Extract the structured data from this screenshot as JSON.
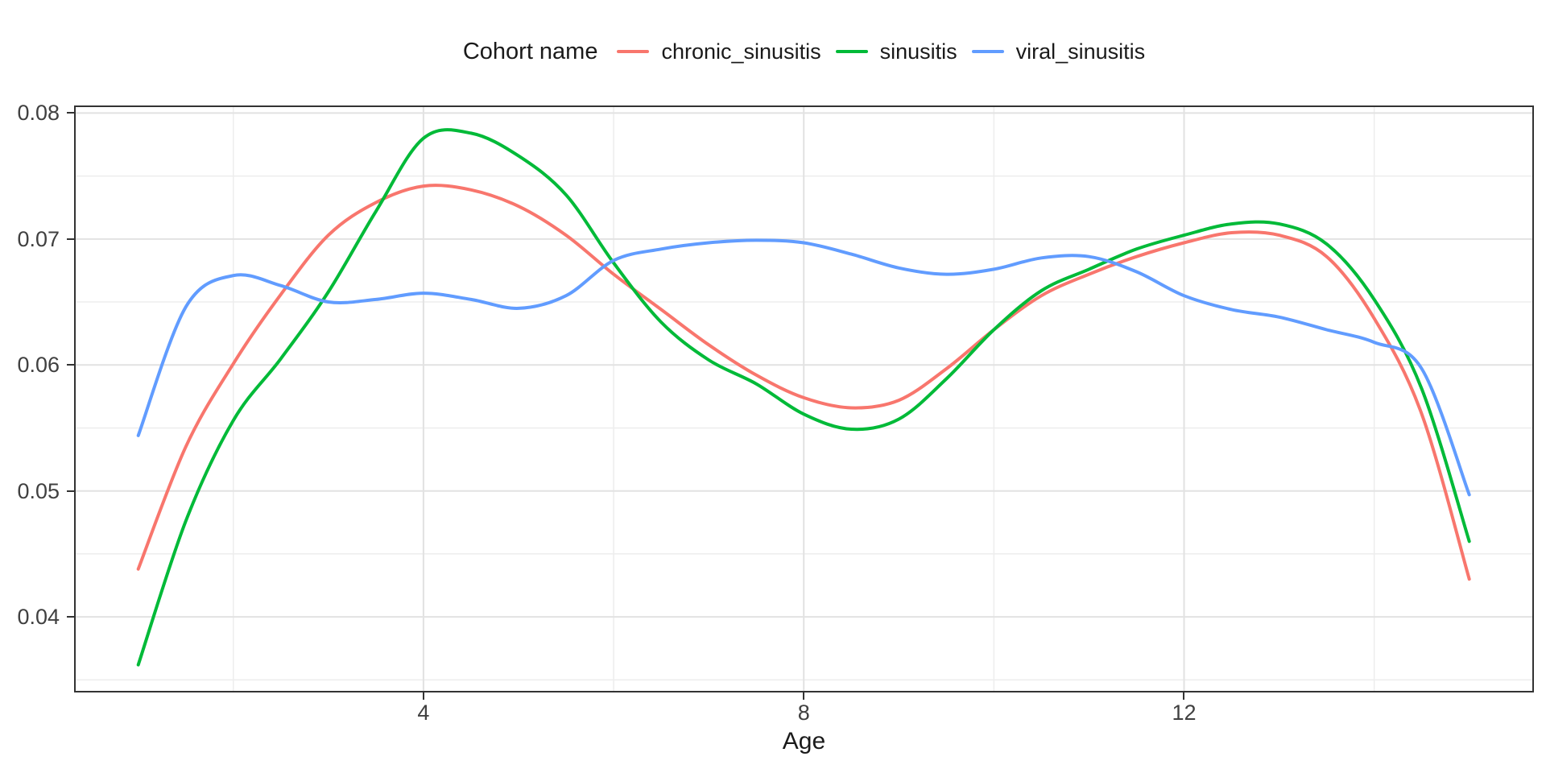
{
  "chart_data": {
    "type": "line",
    "title": "",
    "xlabel": "Age",
    "ylabel": "",
    "legend_title": "Cohort name",
    "legend_position": "top",
    "grid": true,
    "x_domain": [
      0.325,
      15.68
    ],
    "y_domain": [
      0.034,
      0.0806
    ],
    "x_ticks": [
      {
        "value": 4,
        "label": "4"
      },
      {
        "value": 8,
        "label": "8"
      },
      {
        "value": 12,
        "label": "12"
      }
    ],
    "y_ticks": [
      {
        "value": 0.04,
        "label": "0.04"
      },
      {
        "value": 0.05,
        "label": "0.05"
      },
      {
        "value": 0.06,
        "label": "0.06"
      },
      {
        "value": 0.07,
        "label": "0.07"
      },
      {
        "value": 0.08,
        "label": "0.08"
      }
    ],
    "x_minor": [
      2,
      6,
      10,
      14
    ],
    "y_minor": [
      0.035,
      0.045,
      0.055,
      0.065,
      0.075
    ],
    "colors": {
      "grid_major": "#E2E2E2",
      "grid_minor": "#EDEDED",
      "panel_border": "#333333",
      "tick": "#333333",
      "tick_label": "#404040",
      "title_text": "#1A1A1A"
    },
    "series": [
      {
        "name": "chronic_sinusitis",
        "color": "#F8766D",
        "points": [
          [
            1.0,
            0.0438
          ],
          [
            1.5,
            0.0535
          ],
          [
            2.0,
            0.0601
          ],
          [
            2.5,
            0.0656
          ],
          [
            3.0,
            0.0703
          ],
          [
            3.5,
            0.0729
          ],
          [
            4.0,
            0.0742
          ],
          [
            4.5,
            0.0739
          ],
          [
            5.0,
            0.0726
          ],
          [
            5.5,
            0.0703
          ],
          [
            6.0,
            0.0672
          ],
          [
            6.5,
            0.0644
          ],
          [
            7.0,
            0.0616
          ],
          [
            7.5,
            0.0592
          ],
          [
            8.0,
            0.0574
          ],
          [
            8.5,
            0.0566
          ],
          [
            9.0,
            0.0572
          ],
          [
            9.5,
            0.0597
          ],
          [
            10.0,
            0.0628
          ],
          [
            10.5,
            0.0655
          ],
          [
            11.0,
            0.0672
          ],
          [
            11.5,
            0.0686
          ],
          [
            12.0,
            0.0697
          ],
          [
            12.5,
            0.0705
          ],
          [
            13.0,
            0.0703
          ],
          [
            13.5,
            0.0686
          ],
          [
            14.0,
            0.0637
          ],
          [
            14.5,
            0.0561
          ],
          [
            15.0,
            0.043
          ]
        ]
      },
      {
        "name": "sinusitis",
        "color": "#00BA38",
        "points": [
          [
            1.0,
            0.0362
          ],
          [
            1.5,
            0.0476
          ],
          [
            2.0,
            0.0556
          ],
          [
            2.5,
            0.0605
          ],
          [
            3.0,
            0.0658
          ],
          [
            3.5,
            0.0722
          ],
          [
            4.0,
            0.078
          ],
          [
            4.5,
            0.0784
          ],
          [
            5.0,
            0.0766
          ],
          [
            5.5,
            0.0735
          ],
          [
            6.0,
            0.0681
          ],
          [
            6.5,
            0.0634
          ],
          [
            7.0,
            0.0604
          ],
          [
            7.5,
            0.0585
          ],
          [
            8.0,
            0.0561
          ],
          [
            8.5,
            0.0549
          ],
          [
            9.0,
            0.0557
          ],
          [
            9.5,
            0.0589
          ],
          [
            10.0,
            0.0628
          ],
          [
            10.5,
            0.0659
          ],
          [
            11.0,
            0.0676
          ],
          [
            11.5,
            0.0692
          ],
          [
            12.0,
            0.0703
          ],
          [
            12.5,
            0.0712
          ],
          [
            13.0,
            0.0712
          ],
          [
            13.5,
            0.0696
          ],
          [
            14.0,
            0.0652
          ],
          [
            14.5,
            0.0581
          ],
          [
            15.0,
            0.046
          ]
        ]
      },
      {
        "name": "viral_sinusitis",
        "color": "#619CFF",
        "points": [
          [
            1.0,
            0.0544
          ],
          [
            1.5,
            0.0646
          ],
          [
            2.0,
            0.0671
          ],
          [
            2.5,
            0.0663
          ],
          [
            3.0,
            0.065
          ],
          [
            3.5,
            0.0652
          ],
          [
            4.0,
            0.0657
          ],
          [
            4.5,
            0.0652
          ],
          [
            5.0,
            0.0645
          ],
          [
            5.5,
            0.0655
          ],
          [
            6.0,
            0.0683
          ],
          [
            6.5,
            0.0692
          ],
          [
            7.0,
            0.0697
          ],
          [
            7.5,
            0.0699
          ],
          [
            8.0,
            0.0697
          ],
          [
            8.5,
            0.0688
          ],
          [
            9.0,
            0.0677
          ],
          [
            9.5,
            0.0672
          ],
          [
            10.0,
            0.0676
          ],
          [
            10.5,
            0.0685
          ],
          [
            11.0,
            0.0686
          ],
          [
            11.5,
            0.0674
          ],
          [
            12.0,
            0.0655
          ],
          [
            12.5,
            0.0644
          ],
          [
            13.0,
            0.0638
          ],
          [
            13.5,
            0.0628
          ],
          [
            14.0,
            0.0618
          ],
          [
            14.5,
            0.0597
          ],
          [
            15.0,
            0.0497
          ]
        ]
      }
    ]
  }
}
